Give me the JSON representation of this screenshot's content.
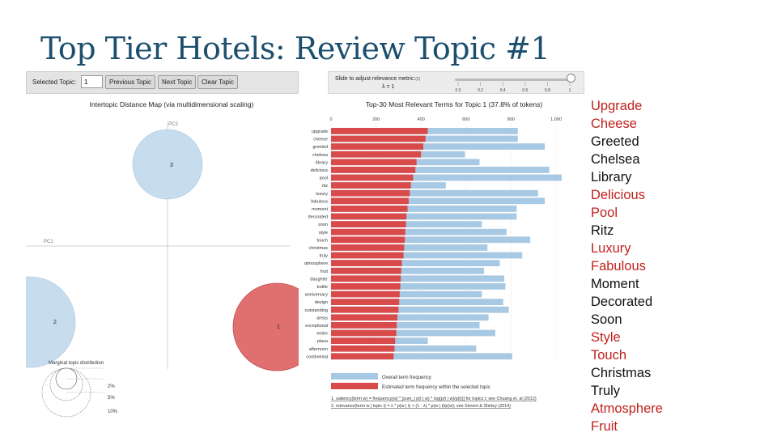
{
  "slide": {
    "title": "Top Tier Hotels: Review Topic #1"
  },
  "controls": {
    "selected_topic_label": "Selected Topic:",
    "selected_topic_value": "1",
    "prev_label": "Previous Topic",
    "next_label": "Next Topic",
    "clear_label": "Clear Topic",
    "slider_label": "Slide to adjust relevance metric:",
    "slider_ref": "(2)",
    "lambda_text": "λ = 1",
    "lambda_value": 1,
    "slider_ticks": [
      "0.0",
      "0.2",
      "0.4",
      "0.6",
      "0.8",
      "1"
    ]
  },
  "intertopic": {
    "title": "Intertopic Distance Map (via multidimensional scaling)",
    "pc1_label": "PC1",
    "pc2_label": "PC2",
    "topics": [
      {
        "id": "1",
        "selected": true
      },
      {
        "id": "2",
        "selected": false
      },
      {
        "id": "3",
        "selected": false
      }
    ],
    "marginal": {
      "title": "Marginal topic distribution",
      "labels": [
        "2%",
        "5%",
        "10%"
      ]
    }
  },
  "chart_data": {
    "type": "bar",
    "title": "Top-30 Most Relevant Terms for Topic 1 (37.8% of tokens)",
    "orientation": "horizontal",
    "xlim": [
      0,
      1000
    ],
    "xticks": [
      "0",
      "200",
      "400",
      "600",
      "800",
      "1,000"
    ],
    "categories": [
      "upgrade",
      "cheese",
      "greeted",
      "chelsea",
      "library",
      "delicious",
      "pool",
      "ritz",
      "luxury",
      "fabulous",
      "moment",
      "decorated",
      "soon",
      "style",
      "touch",
      "christmas",
      "truly",
      "atmosphere",
      "fruit",
      "daughter",
      "bottle",
      "anniversary",
      "design",
      "outstanding",
      "areas",
      "exceptional",
      "entire",
      "plaza",
      "afternoon",
      "continental"
    ],
    "series": [
      {
        "name": "Overall term frequency",
        "color": "#a8c9e3",
        "values": [
          830,
          830,
          950,
          595,
          660,
          970,
          1025,
          510,
          920,
          950,
          825,
          825,
          670,
          780,
          885,
          695,
          850,
          750,
          680,
          770,
          775,
          670,
          765,
          790,
          700,
          660,
          730,
          430,
          645,
          805
        ]
      },
      {
        "name": "Estimated term frequency within the selected topic",
        "color": "#d94a4a",
        "values": [
          430,
          420,
          410,
          400,
          380,
          375,
          365,
          355,
          350,
          345,
          340,
          335,
          333,
          330,
          328,
          325,
          322,
          315,
          312,
          310,
          308,
          305,
          303,
          300,
          295,
          292,
          290,
          285,
          282,
          278
        ]
      }
    ],
    "legend": [
      "Overall term frequency",
      "Estimated term frequency within the selected topic"
    ],
    "footnotes": [
      "1. saliency(term w) = frequency(w) * [sum_t p(t | w) * log(p(t | w)/p(t))] for topics t; see Chuang et. al (2012)",
      "2. relevance(term w | topic t) = λ * p(w | t) + (1 - λ) * p(w | t)/p(w); see Sievert & Shirley (2014)"
    ]
  },
  "terms_list": [
    {
      "text": "Upgrade",
      "highlight": true
    },
    {
      "text": "Cheese",
      "highlight": true
    },
    {
      "text": "Greeted",
      "highlight": false
    },
    {
      "text": "Chelsea",
      "highlight": false
    },
    {
      "text": "Library",
      "highlight": false
    },
    {
      "text": "Delicious",
      "highlight": true
    },
    {
      "text": "Pool",
      "highlight": true
    },
    {
      "text": "Ritz",
      "highlight": false
    },
    {
      "text": "Luxury",
      "highlight": true
    },
    {
      "text": "Fabulous",
      "highlight": true
    },
    {
      "text": "Moment",
      "highlight": false
    },
    {
      "text": "Decorated",
      "highlight": false
    },
    {
      "text": "Soon",
      "highlight": false
    },
    {
      "text": "Style",
      "highlight": true
    },
    {
      "text": "Touch",
      "highlight": true
    },
    {
      "text": "Christmas",
      "highlight": false
    },
    {
      "text": "Truly",
      "highlight": false
    },
    {
      "text": "Atmosphere",
      "highlight": true
    },
    {
      "text": "Fruit",
      "highlight": true
    }
  ],
  "colors": {
    "title": "#1c4f6e",
    "highlight": "#c0211c",
    "plain": "#111111",
    "selected_topic": "#e07070",
    "unselected_topic": "#c7dcec"
  }
}
